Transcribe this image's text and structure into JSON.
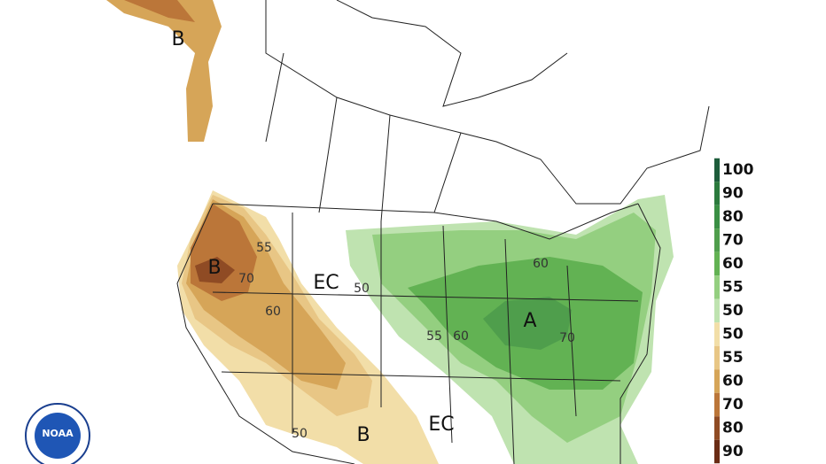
{
  "map": {
    "labels": [
      "B",
      "B",
      "EC",
      "EC",
      "B",
      "A"
    ],
    "contour_labels": [
      "55",
      "70",
      "60",
      "50",
      "55",
      "60",
      "60",
      "70",
      "50"
    ],
    "legend_above": [
      {
        "label": "100",
        "color": "#1d5c3b"
      },
      {
        "label": "90",
        "color": "#2b7a3d"
      },
      {
        "label": "80",
        "color": "#3a8f44"
      },
      {
        "label": "70",
        "color": "#4f9e4c"
      },
      {
        "label": "60",
        "color": "#62b253"
      },
      {
        "label": "55",
        "color": "#94cf80"
      },
      {
        "label": "50",
        "color": "#bfe3b0"
      }
    ],
    "legend_below": [
      {
        "label": "50",
        "color": "#f2dea8"
      },
      {
        "label": "55",
        "color": "#e8c685"
      },
      {
        "label": "60",
        "color": "#d6a558"
      },
      {
        "label": "70",
        "color": "#bb7639"
      },
      {
        "label": "80",
        "color": "#8f4b24"
      },
      {
        "label": "90",
        "color": "#6a2c15"
      }
    ],
    "logo": "NOAA"
  }
}
